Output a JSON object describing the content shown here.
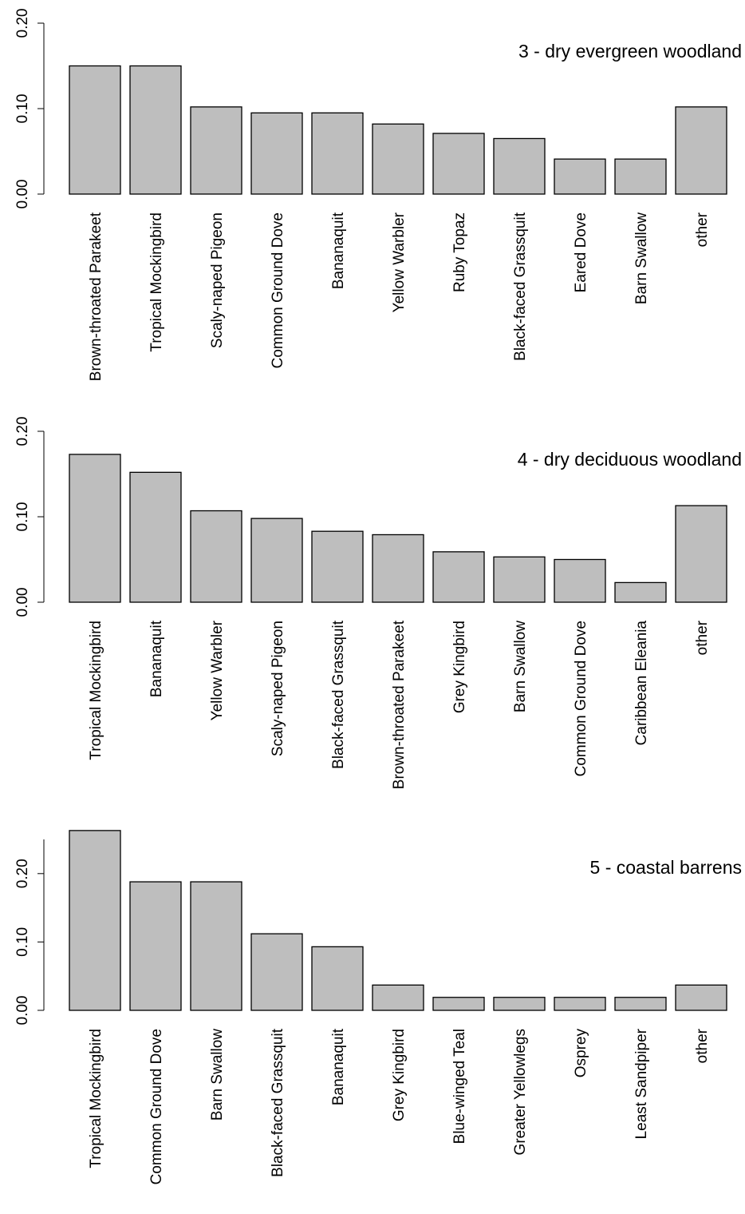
{
  "chart_data": [
    {
      "type": "bar",
      "title": "3 - dry evergreen woodland",
      "categories": [
        "Brown-throated Parakeet",
        "Tropical Mockingbird",
        "Scaly-naped Pigeon",
        "Common Ground Dove",
        "Bananaquit",
        "Yellow Warbler",
        "Ruby Topaz",
        "Black-faced Grassquit",
        "Eared Dove",
        "Barn Swallow",
        "other"
      ],
      "values": [
        0.15,
        0.15,
        0.102,
        0.095,
        0.095,
        0.082,
        0.071,
        0.065,
        0.041,
        0.041,
        0.102
      ],
      "color": "#bebebe",
      "ylim": [
        0,
        0.2
      ],
      "yticks": [
        {
          "value": 0,
          "label": "0.00"
        },
        {
          "value": 0.1,
          "label": "0.10"
        },
        {
          "value": 0.2,
          "label": "0.20"
        }
      ]
    },
    {
      "type": "bar",
      "title": "4 - dry deciduous woodland",
      "categories": [
        "Tropical Mockingbird",
        "Bananaquit",
        "Yellow Warbler",
        "Scaly-naped Pigeon",
        "Black-faced Grassquit",
        "Brown-throated Parakeet",
        "Grey Kingbird",
        "Barn Swallow",
        "Common Ground Dove",
        "Caribbean Eleania",
        "other"
      ],
      "values": [
        0.173,
        0.152,
        0.107,
        0.098,
        0.083,
        0.079,
        0.059,
        0.053,
        0.05,
        0.023,
        0.113
      ],
      "color": "#bebebe",
      "ylim": [
        0,
        0.2
      ],
      "yticks": [
        {
          "value": 0,
          "label": "0.00"
        },
        {
          "value": 0.1,
          "label": "0.10"
        },
        {
          "value": 0.2,
          "label": "0.20"
        }
      ]
    },
    {
      "type": "bar",
      "title": "5 - coastal barrens",
      "categories": [
        "Tropical Mockingbird",
        "Common Ground Dove",
        "Barn Swallow",
        "Black-faced Grassquit",
        "Bananaquit",
        "Grey Kingbird",
        "Blue-winged Teal",
        "Greater Yellowlegs",
        "Osprey",
        "Least Sandpiper",
        "other"
      ],
      "values": [
        0.263,
        0.188,
        0.188,
        0.112,
        0.093,
        0.037,
        0.019,
        0.019,
        0.019,
        0.019,
        0.037
      ],
      "color": "#bebebe",
      "ylim": [
        0,
        0.25
      ],
      "yticks": [
        {
          "value": 0,
          "label": "0.00"
        },
        {
          "value": 0.1,
          "label": "0.10"
        },
        {
          "value": 0.2,
          "label": "0.20"
        }
      ]
    }
  ]
}
